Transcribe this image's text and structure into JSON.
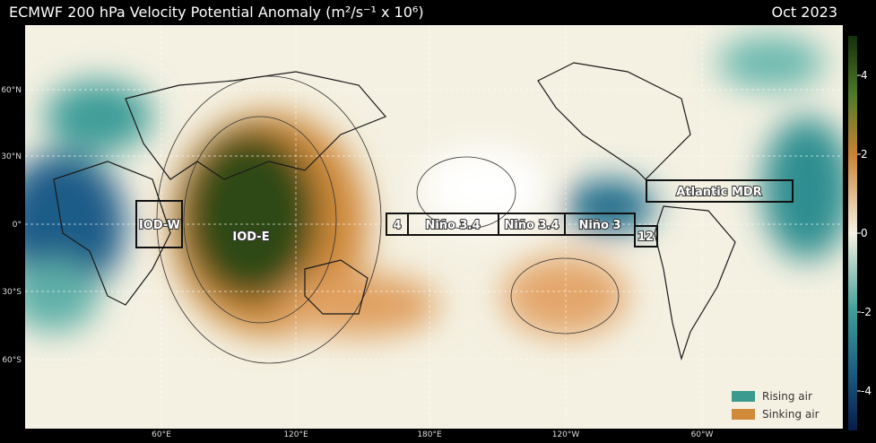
{
  "title": "ECMWF 200 hPa Velocity Potential Anomaly (m²/s⁻¹ x 10⁶)",
  "date": "Oct 2023",
  "lat_labels": [
    "60°N",
    "30°N",
    "0°",
    "30°S",
    "60°S"
  ],
  "lon_labels": [
    "60°E",
    "120°E",
    "180°E",
    "120°W",
    "60°W"
  ],
  "regions": [
    "IOD-W",
    "IOD-E",
    "4",
    "Niño 3.4",
    "Niño 3.4",
    "Niño 3",
    "12",
    "Atlantic MDR"
  ],
  "colorbar": {
    "lim": [
      -5,
      5
    ],
    "ticks": [
      4,
      2,
      0,
      -2,
      -4
    ]
  },
  "legend": [
    {
      "name": "Rising air",
      "color": "#3a9a8e"
    },
    {
      "name": "Sinking air",
      "color": "#d08a3a"
    }
  ]
}
